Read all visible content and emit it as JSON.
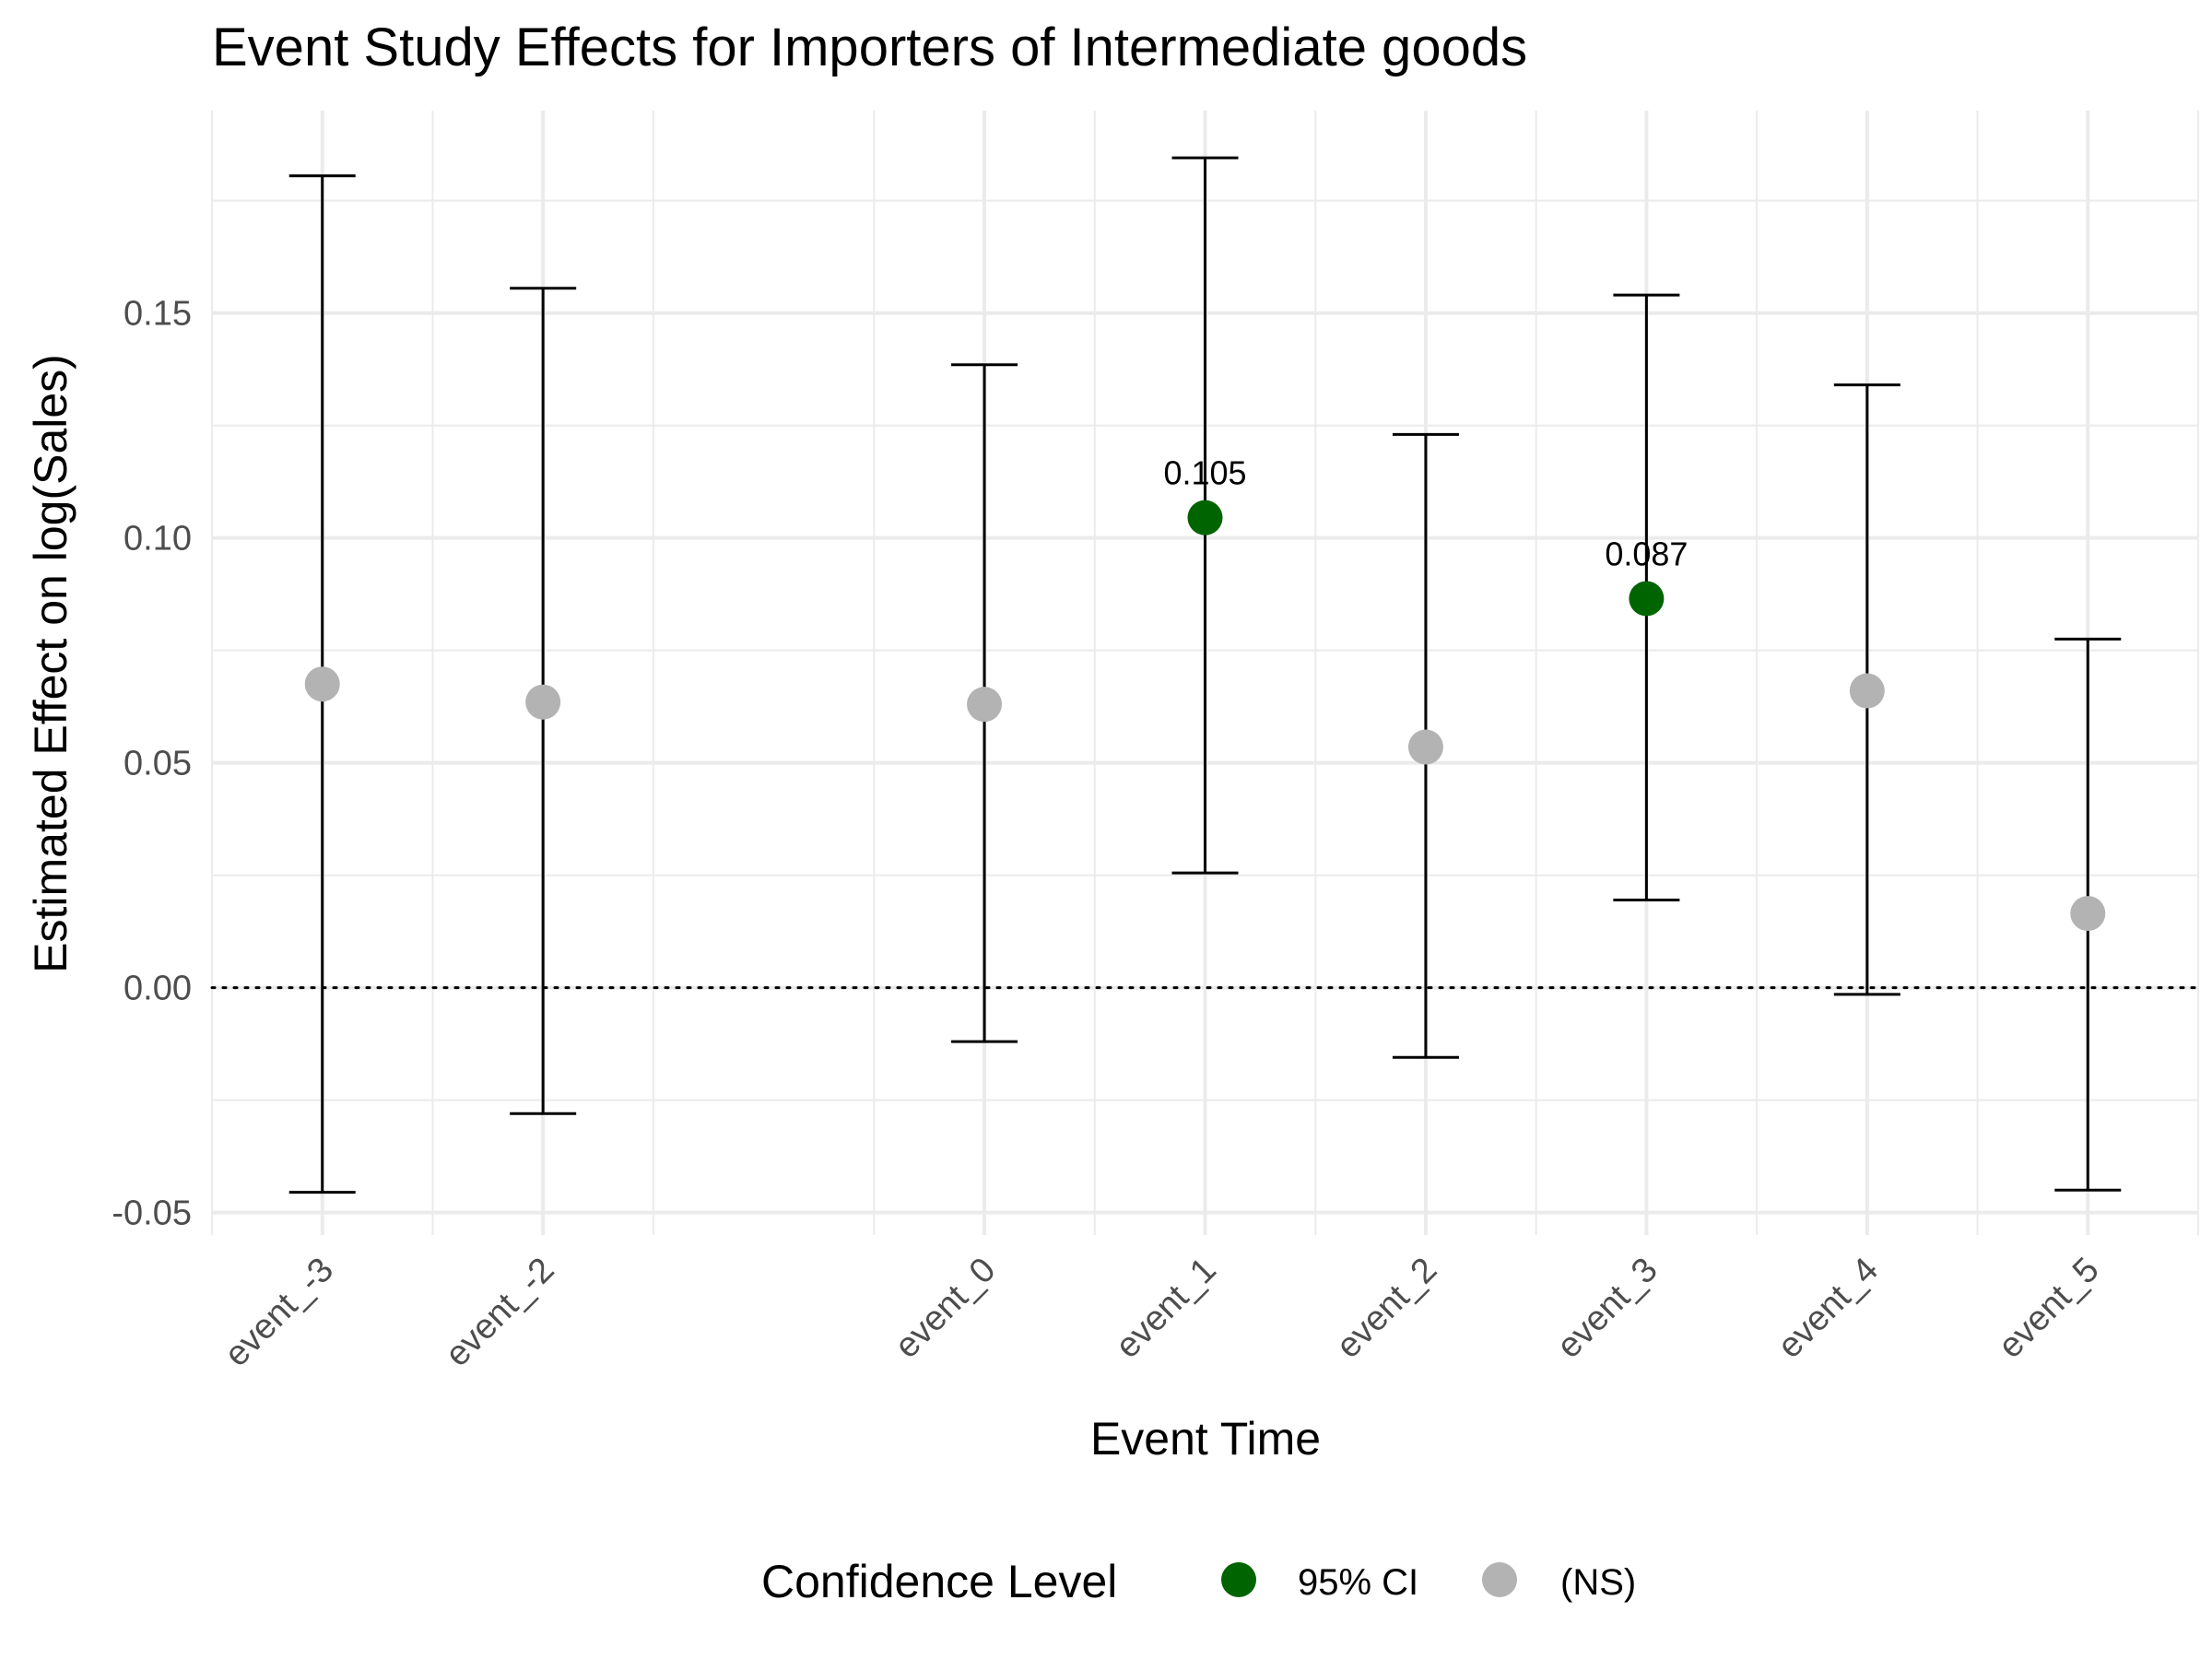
{
  "chart_data": {
    "type": "scatter",
    "title": "Event Study Effects for Importers of Intermediate goods",
    "xlabel": "Event Time",
    "ylabel": "Estimated Effect on log(Sales)",
    "categories": [
      "event_-3",
      "event_-2",
      "event_0",
      "event_1",
      "event_2",
      "event_3",
      "event_4",
      "event_5"
    ],
    "x_positions": [
      -3,
      -2,
      0,
      1,
      2,
      3,
      4,
      5
    ],
    "estimates": [
      0.0675,
      0.0635,
      0.063,
      0.1045,
      0.0535,
      0.0865,
      0.066,
      0.0165
    ],
    "ci_low": [
      -0.0455,
      -0.028,
      -0.012,
      0.0255,
      -0.0155,
      0.0195,
      -0.0015,
      -0.045
    ],
    "ci_high": [
      0.1805,
      0.1555,
      0.1385,
      0.1845,
      0.123,
      0.154,
      0.134,
      0.0775
    ],
    "significance": [
      "(NS)",
      "(NS)",
      "(NS)",
      "95% CI",
      "(NS)",
      "95% CI",
      "(NS)",
      "(NS)"
    ],
    "point_labels": [
      "",
      "",
      "",
      "0.105",
      "",
      "0.087",
      "",
      ""
    ],
    "ylim": [
      -0.055,
      0.195
    ],
    "xlim": [
      -3.5,
      5.5
    ],
    "y_ticks": [
      "-0.05",
      "0.00",
      "0.05",
      "0.10",
      "0.15"
    ],
    "y_tick_values": [
      -0.05,
      0,
      0.05,
      0.1,
      0.15
    ],
    "reference_line": 0,
    "grid": true,
    "legend": {
      "title": "Confidence Level",
      "position": "bottom",
      "entries": [
        {
          "label": "95% CI",
          "color": "#006400"
        },
        {
          "label": "(NS)",
          "color": "#b3b3b3"
        }
      ]
    },
    "colors": {
      "significant": "#006400",
      "not_significant": "#b3b3b3",
      "errorbar": "#000000",
      "grid": "#ebebeb"
    }
  }
}
